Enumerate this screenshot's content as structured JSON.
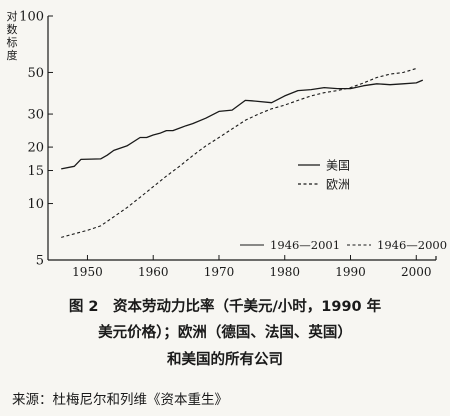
{
  "chart_data": {
    "type": "line",
    "ylabel": "对数标度",
    "y_scale": "log",
    "ylim": [
      5,
      100
    ],
    "xlim": [
      1944,
      2003
    ],
    "y_ticks": [
      5,
      10,
      15,
      20,
      30,
      50,
      100
    ],
    "x_ticks": [
      1950,
      1960,
      1970,
      1980,
      1990,
      2000
    ],
    "grid": false,
    "legend": {
      "placement": "right",
      "entries": [
        "美国",
        "欧洲"
      ]
    },
    "period_labels": [
      "1946—2001",
      "1946—2000"
    ],
    "series": [
      {
        "name": "美国",
        "style": "solid",
        "color": "#1a1a1a",
        "x": [
          1946,
          1948,
          1949,
          1952,
          1953,
          1954,
          1956,
          1958,
          1959,
          1960,
          1961,
          1962,
          1963,
          1965,
          1966,
          1968,
          1970,
          1972,
          1974,
          1975,
          1978,
          1980,
          1982,
          1984,
          1986,
          1988,
          1990,
          1992,
          1994,
          1996,
          1998,
          2000,
          2001
        ],
        "values": [
          15.3,
          15.8,
          17.2,
          17.3,
          18.1,
          19.2,
          20.3,
          22.5,
          22.5,
          23.2,
          23.7,
          24.5,
          24.5,
          26.0,
          26.7,
          28.5,
          31.0,
          31.5,
          35.5,
          35.3,
          34.5,
          37.5,
          40.0,
          40.5,
          41.5,
          41.0,
          41.0,
          42.5,
          43.5,
          43.0,
          43.5,
          44.0,
          45.5
        ]
      },
      {
        "name": "欧洲",
        "style": "dashed",
        "color": "#1a1a1a",
        "x": [
          1946,
          1948,
          1950,
          1952,
          1954,
          1956,
          1958,
          1960,
          1962,
          1964,
          1966,
          1968,
          1970,
          1972,
          1974,
          1976,
          1978,
          1980,
          1982,
          1984,
          1986,
          1988,
          1990,
          1992,
          1994,
          1996,
          1998,
          2000
        ],
        "values": [
          6.6,
          6.9,
          7.2,
          7.6,
          8.5,
          9.5,
          10.8,
          12.3,
          14.0,
          15.8,
          18.0,
          20.3,
          22.5,
          25.0,
          27.8,
          30.0,
          32.0,
          33.5,
          35.5,
          37.5,
          39.0,
          40.0,
          41.5,
          44.0,
          47.0,
          49.0,
          50.0,
          52.5
        ]
      }
    ]
  },
  "caption": {
    "line1": "图 2　资本劳动力比率（千美元/小时，1990 年",
    "line2": "美元价格）；欧洲（德国、法国、英国）",
    "line3": "和美国的所有公司"
  },
  "source": "来源：杜梅尼尔和列维《资本重生》"
}
